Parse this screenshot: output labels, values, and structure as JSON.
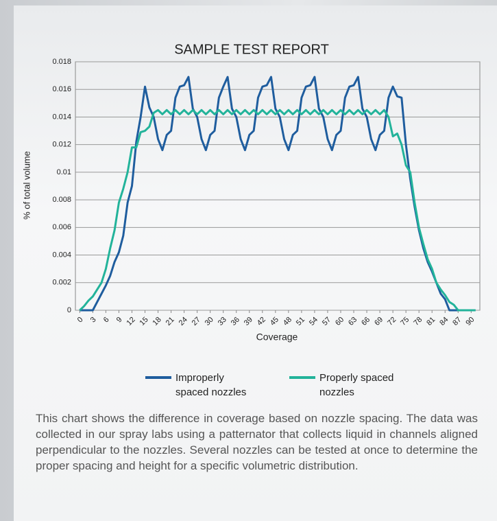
{
  "chart_data": {
    "type": "line",
    "title": "SAMPLE TEST REPORT",
    "x_label": "Coverage",
    "y_label": "% of total volume",
    "x": [
      0,
      1,
      2,
      3,
      4,
      5,
      6,
      7,
      8,
      9,
      10,
      11,
      12,
      13,
      14,
      15,
      16,
      17,
      18,
      19,
      20,
      21,
      22,
      23,
      24,
      25,
      26,
      27,
      28,
      29,
      30,
      31,
      32,
      33,
      34,
      35,
      36,
      37,
      38,
      39,
      40,
      41,
      42,
      43,
      44,
      45,
      46,
      47,
      48,
      49,
      50,
      51,
      52,
      53,
      54,
      55,
      56,
      57,
      58,
      59,
      60,
      61,
      62,
      63,
      64,
      65,
      66,
      67,
      68,
      69,
      70,
      71,
      72,
      73,
      74,
      75,
      76,
      77,
      78,
      79,
      80,
      81,
      82,
      83,
      84,
      85,
      86,
      87,
      88,
      89,
      90,
      91
    ],
    "series": [
      {
        "name": "Improperly spaced nozzles",
        "color": "#1f5d9e",
        "values": [
          0,
          0,
          0,
          0,
          0.0006,
          0.0012,
          0.0018,
          0.0025,
          0.0035,
          0.0042,
          0.0054,
          0.0078,
          0.009,
          0.0122,
          0.014,
          0.0162,
          0.0147,
          0.014,
          0.0124,
          0.0116,
          0.0127,
          0.013,
          0.0154,
          0.0162,
          0.0163,
          0.0169,
          0.0146,
          0.014,
          0.0124,
          0.0116,
          0.0127,
          0.013,
          0.0154,
          0.0162,
          0.0169,
          0.0146,
          0.014,
          0.0124,
          0.0116,
          0.0127,
          0.013,
          0.0154,
          0.0162,
          0.0163,
          0.0169,
          0.0146,
          0.014,
          0.0124,
          0.0116,
          0.0127,
          0.013,
          0.0154,
          0.0162,
          0.0163,
          0.0169,
          0.0146,
          0.014,
          0.0124,
          0.0116,
          0.0127,
          0.013,
          0.0154,
          0.0162,
          0.0163,
          0.0169,
          0.0146,
          0.014,
          0.0124,
          0.0116,
          0.0127,
          0.013,
          0.0154,
          0.0162,
          0.0155,
          0.0154,
          0.012,
          0.0095,
          0.0075,
          0.0058,
          0.0045,
          0.0035,
          0.0028,
          0.002,
          0.0012,
          0.0008,
          0,
          0,
          0,
          0,
          0,
          0,
          0
        ]
      },
      {
        "name": "Properly spaced nozzles",
        "color": "#22b39a",
        "values": [
          0,
          0.0003,
          0.0007,
          0.001,
          0.0015,
          0.002,
          0.003,
          0.0045,
          0.0058,
          0.0078,
          0.0088,
          0.01,
          0.0118,
          0.0118,
          0.0129,
          0.013,
          0.0133,
          0.0143,
          0.0145,
          0.0142,
          0.0145,
          0.0142,
          0.0145,
          0.0142,
          0.0145,
          0.0142,
          0.0145,
          0.0142,
          0.0145,
          0.0142,
          0.0145,
          0.0142,
          0.0145,
          0.0142,
          0.0145,
          0.0142,
          0.0145,
          0.0142,
          0.0145,
          0.0142,
          0.0145,
          0.0142,
          0.0145,
          0.0142,
          0.0145,
          0.0142,
          0.0145,
          0.0142,
          0.0145,
          0.0142,
          0.0145,
          0.0142,
          0.0145,
          0.0142,
          0.0145,
          0.0142,
          0.0145,
          0.0142,
          0.0145,
          0.0142,
          0.0145,
          0.0142,
          0.0145,
          0.0142,
          0.0145,
          0.0142,
          0.0145,
          0.0142,
          0.0145,
          0.0142,
          0.0145,
          0.014,
          0.0126,
          0.0128,
          0.012,
          0.0105,
          0.01,
          0.0078,
          0.006,
          0.0048,
          0.0037,
          0.003,
          0.002,
          0.0015,
          0.0011,
          0.0006,
          0.0004,
          0,
          0,
          0,
          0,
          0
        ]
      }
    ],
    "xlim": [
      -1,
      92
    ],
    "xticks": [
      0,
      3,
      6,
      9,
      12,
      15,
      18,
      21,
      24,
      27,
      30,
      33,
      36,
      39,
      42,
      45,
      48,
      51,
      54,
      57,
      60,
      63,
      66,
      69,
      72,
      75,
      78,
      81,
      84,
      87,
      90
    ],
    "ylim": [
      0,
      0.018
    ],
    "yticks": [
      0,
      0.002,
      0.004,
      0.006,
      0.008,
      0.01,
      0.012,
      0.014,
      0.016,
      0.018
    ],
    "grid": true,
    "legend": "bottom",
    "description": "This chart shows the difference in coverage based on nozzle spacing. The data was collected in our spray labs using a patternator that collects liquid in channels aligned perpendicular to the nozzles. Several nozzles can be tested at once to determine the proper spacing and height for a specific volumetric distribution."
  }
}
